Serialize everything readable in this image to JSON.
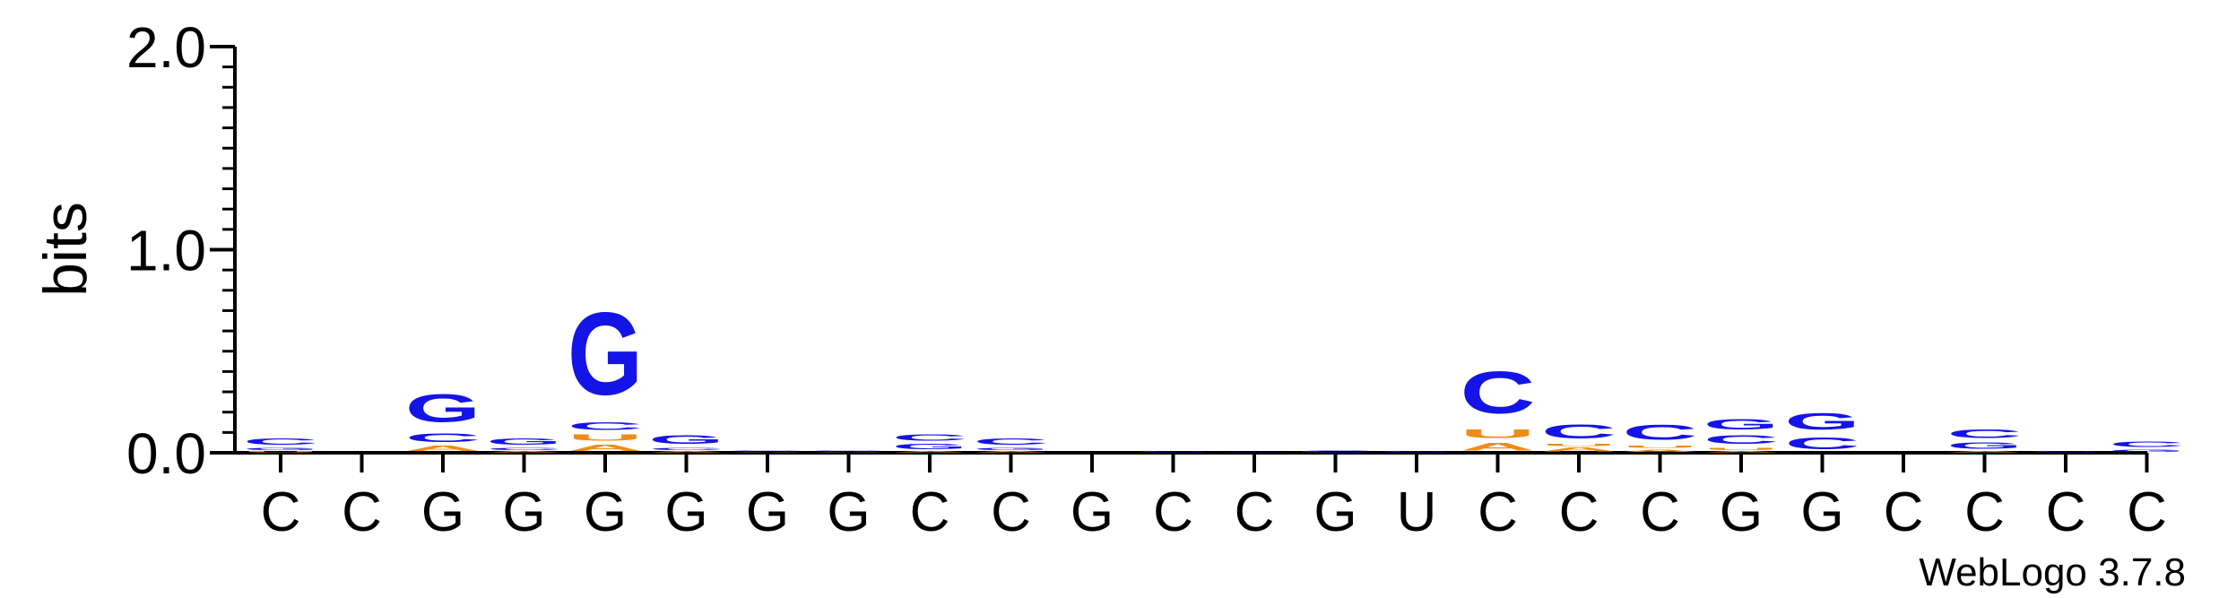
{
  "chart_data": {
    "type": "sequence-logo",
    "ylabel": "bits",
    "ylim": [
      0,
      2.0
    ],
    "yticks": [
      "0.0",
      "1.0",
      "2.0"
    ],
    "x_labels": [
      "C",
      "C",
      "G",
      "G",
      "G",
      "G",
      "G",
      "G",
      "C",
      "C",
      "G",
      "C",
      "C",
      "G",
      "U",
      "C",
      "C",
      "C",
      "G",
      "G",
      "C",
      "C",
      "C",
      "C"
    ],
    "footer": "WebLogo 3.7.8",
    "colors": {
      "G": "#1414e6",
      "C": "#1414e6",
      "U": "#f08c14",
      "A": "#f08c14"
    },
    "positions": [
      {
        "stack": [
          {
            "letter": "U",
            "bits": 0.01
          },
          {
            "letter": "G",
            "bits": 0.02
          },
          {
            "letter": "C",
            "bits": 0.05
          }
        ]
      },
      {
        "stack": []
      },
      {
        "stack": [
          {
            "letter": "A",
            "bits": 0.04
          },
          {
            "letter": "C",
            "bits": 0.07
          },
          {
            "letter": "G",
            "bits": 0.22
          }
        ]
      },
      {
        "stack": [
          {
            "letter": "A",
            "bits": 0.01
          },
          {
            "letter": "C",
            "bits": 0.02
          },
          {
            "letter": "G",
            "bits": 0.05
          }
        ]
      },
      {
        "stack": [
          {
            "letter": "A",
            "bits": 0.05
          },
          {
            "letter": "U",
            "bits": 0.05
          },
          {
            "letter": "C",
            "bits": 0.06
          },
          {
            "letter": "G",
            "bits": 0.65
          }
        ]
      },
      {
        "stack": [
          {
            "letter": "A",
            "bits": 0.01
          },
          {
            "letter": "C",
            "bits": 0.02
          },
          {
            "letter": "G",
            "bits": 0.07
          }
        ]
      },
      {
        "stack": [
          {
            "letter": "A",
            "bits": 0.005
          },
          {
            "letter": "C",
            "bits": 0.005
          },
          {
            "letter": "G",
            "bits": 0.006
          }
        ]
      },
      {
        "stack": [
          {
            "letter": "A",
            "bits": 0.003
          },
          {
            "letter": "C",
            "bits": 0.004
          },
          {
            "letter": "G",
            "bits": 0.006
          }
        ]
      },
      {
        "stack": [
          {
            "letter": "A",
            "bits": 0.01
          },
          {
            "letter": "G",
            "bits": 0.04
          },
          {
            "letter": "C",
            "bits": 0.05
          }
        ]
      },
      {
        "stack": [
          {
            "letter": "A",
            "bits": 0.01
          },
          {
            "letter": "G",
            "bits": 0.02
          },
          {
            "letter": "C",
            "bits": 0.05
          }
        ]
      },
      {
        "stack": []
      },
      {
        "stack": [
          {
            "letter": "C",
            "bits": 0.01
          }
        ]
      },
      {
        "stack": [
          {
            "letter": "C",
            "bits": 0.005
          }
        ]
      },
      {
        "stack": [
          {
            "letter": "C",
            "bits": 0.015
          }
        ]
      },
      {
        "stack": [
          {
            "letter": "C",
            "bits": 0.008
          }
        ]
      },
      {
        "stack": [
          {
            "letter": "A",
            "bits": 0.06
          },
          {
            "letter": "U",
            "bits": 0.07
          },
          {
            "letter": "C",
            "bits": 0.33
          }
        ]
      },
      {
        "stack": [
          {
            "letter": "A",
            "bits": 0.03
          },
          {
            "letter": "U",
            "bits": 0.02
          },
          {
            "letter": "C",
            "bits": 0.11
          }
        ]
      },
      {
        "stack": [
          {
            "letter": "A",
            "bits": 0.02
          },
          {
            "letter": "U",
            "bits": 0.02
          },
          {
            "letter": "C",
            "bits": 0.12
          }
        ]
      },
      {
        "stack": [
          {
            "letter": "A",
            "bits": 0.01
          },
          {
            "letter": "U",
            "bits": 0.02
          },
          {
            "letter": "C",
            "bits": 0.07
          },
          {
            "letter": "G",
            "bits": 0.08
          }
        ]
      },
      {
        "stack": [
          {
            "letter": "C",
            "bits": 0.09
          },
          {
            "letter": "G",
            "bits": 0.13
          }
        ]
      },
      {
        "stack": []
      },
      {
        "stack": [
          {
            "letter": "A",
            "bits": 0.01
          },
          {
            "letter": "G",
            "bits": 0.05
          },
          {
            "letter": "C",
            "bits": 0.07
          }
        ]
      },
      {
        "stack": [
          {
            "letter": "C",
            "bits": 0.01
          }
        ]
      },
      {
        "stack": [
          {
            "letter": "G",
            "bits": 0.02
          },
          {
            "letter": "C",
            "bits": 0.04
          }
        ]
      }
    ]
  }
}
